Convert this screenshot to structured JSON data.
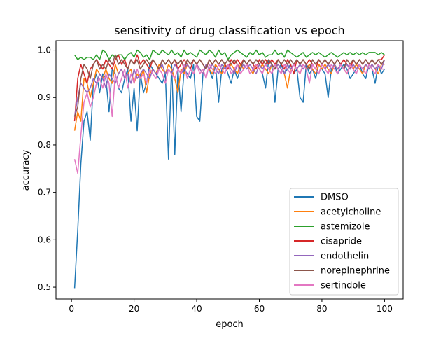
{
  "chart_data": {
    "type": "line",
    "title": "sensitivity of drug classification vs epoch",
    "xlabel": "epoch",
    "ylabel": "accuracy",
    "xlim": [
      -4.95,
      105.95
    ],
    "ylim": [
      0.475,
      1.02
    ],
    "xticks": [
      0,
      20,
      40,
      60,
      80,
      100
    ],
    "yticks": [
      0.5,
      0.6,
      0.7,
      0.8,
      0.9,
      1.0
    ],
    "xtick_labels": [
      "0",
      "20",
      "40",
      "60",
      "80",
      "100"
    ],
    "ytick_labels": [
      "0.5",
      "0.6",
      "0.7",
      "0.8",
      "0.9",
      "1.0"
    ],
    "grid": false,
    "legend_position": "lower-right",
    "x": [
      1,
      2,
      3,
      4,
      5,
      6,
      7,
      8,
      9,
      10,
      11,
      12,
      13,
      14,
      15,
      16,
      17,
      18,
      19,
      20,
      21,
      22,
      23,
      24,
      25,
      26,
      27,
      28,
      29,
      30,
      31,
      32,
      33,
      34,
      35,
      36,
      37,
      38,
      39,
      40,
      41,
      42,
      43,
      44,
      45,
      46,
      47,
      48,
      49,
      50,
      51,
      52,
      53,
      54,
      55,
      56,
      57,
      58,
      59,
      60,
      61,
      62,
      63,
      64,
      65,
      66,
      67,
      68,
      69,
      70,
      71,
      72,
      73,
      74,
      75,
      76,
      77,
      78,
      79,
      80,
      81,
      82,
      83,
      84,
      85,
      86,
      87,
      88,
      89,
      90,
      91,
      92,
      93,
      94,
      95,
      96,
      97,
      98,
      99,
      100
    ],
    "series": [
      {
        "name": "DMSO",
        "color": "#1f77b4",
        "values": [
          0.498,
          0.62,
          0.76,
          0.85,
          0.87,
          0.81,
          0.93,
          0.95,
          0.91,
          0.95,
          0.94,
          0.87,
          0.96,
          0.95,
          0.92,
          0.91,
          0.94,
          0.96,
          0.85,
          0.92,
          0.83,
          0.95,
          0.91,
          0.93,
          0.97,
          0.96,
          0.95,
          0.94,
          0.93,
          0.95,
          0.77,
          0.97,
          0.78,
          0.96,
          0.87,
          0.96,
          0.95,
          0.94,
          0.97,
          0.86,
          0.85,
          0.95,
          0.97,
          0.96,
          0.94,
          0.97,
          0.89,
          0.96,
          0.97,
          0.95,
          0.93,
          0.96,
          0.94,
          0.96,
          0.98,
          0.97,
          0.96,
          0.95,
          0.97,
          0.96,
          0.95,
          0.92,
          0.98,
          0.97,
          0.89,
          0.96,
          0.97,
          0.95,
          0.96,
          0.97,
          0.95,
          0.96,
          0.9,
          0.89,
          0.97,
          0.95,
          0.96,
          0.94,
          0.97,
          0.96,
          0.95,
          0.9,
          0.96,
          0.97,
          0.95,
          0.96,
          0.97,
          0.96,
          0.94,
          0.95,
          0.96,
          0.97,
          0.95,
          0.94,
          0.97,
          0.96,
          0.93,
          0.97,
          0.95,
          0.96
        ]
      },
      {
        "name": "acetylcholine",
        "color": "#ff7f0e",
        "values": [
          0.83,
          0.87,
          0.85,
          0.94,
          0.93,
          0.9,
          0.93,
          0.96,
          0.95,
          0.94,
          0.96,
          0.94,
          0.93,
          0.97,
          0.95,
          0.96,
          0.94,
          0.95,
          0.96,
          0.93,
          0.95,
          0.94,
          0.96,
          0.91,
          0.95,
          0.96,
          0.95,
          0.97,
          0.96,
          0.95,
          0.97,
          0.96,
          0.94,
          0.91,
          0.96,
          0.95,
          0.97,
          0.96,
          0.95,
          0.97,
          0.96,
          0.95,
          0.97,
          0.96,
          0.95,
          0.97,
          0.96,
          0.95,
          0.97,
          0.96,
          0.97,
          0.96,
          0.95,
          0.97,
          0.96,
          0.97,
          0.96,
          0.95,
          0.97,
          0.96,
          0.97,
          0.96,
          0.95,
          0.97,
          0.96,
          0.97,
          0.96,
          0.95,
          0.92,
          0.96,
          0.97,
          0.96,
          0.95,
          0.97,
          0.96,
          0.97,
          0.96,
          0.95,
          0.97,
          0.96,
          0.97,
          0.96,
          0.95,
          0.97,
          0.96,
          0.97,
          0.96,
          0.95,
          0.97,
          0.96,
          0.97,
          0.96,
          0.95,
          0.97,
          0.96,
          0.97,
          0.96,
          0.95,
          0.97,
          0.97
        ]
      },
      {
        "name": "astemizole",
        "color": "#2ca02c",
        "values": [
          0.99,
          0.98,
          0.985,
          0.98,
          0.985,
          0.985,
          0.98,
          0.99,
          0.98,
          1.0,
          0.995,
          0.98,
          0.99,
          0.985,
          0.99,
          0.99,
          0.98,
          0.99,
          0.995,
          0.985,
          1.0,
          0.995,
          0.985,
          0.99,
          0.98,
          1.0,
          0.995,
          0.99,
          1.0,
          0.995,
          0.99,
          1.0,
          0.99,
          0.995,
          0.985,
          1.0,
          0.99,
          0.995,
          0.99,
          0.985,
          1.0,
          0.995,
          0.99,
          1.0,
          0.995,
          0.985,
          1.0,
          0.99,
          0.995,
          0.98,
          0.99,
          0.995,
          1.0,
          0.995,
          0.99,
          0.985,
          0.995,
          0.99,
          1.0,
          0.99,
          0.995,
          0.985,
          0.99,
          0.99,
          1.0,
          0.99,
          0.995,
          0.985,
          1.0,
          0.995,
          0.99,
          0.985,
          0.99,
          0.995,
          0.985,
          0.99,
          0.995,
          0.99,
          0.995,
          0.99,
          0.985,
          0.99,
          0.995,
          0.99,
          0.985,
          0.99,
          0.995,
          0.99,
          0.995,
          0.99,
          0.995,
          0.99,
          0.995,
          0.99,
          0.995,
          0.995,
          0.995,
          0.99,
          0.995,
          0.99
        ]
      },
      {
        "name": "cisapride",
        "color": "#d62728",
        "values": [
          0.85,
          0.94,
          0.97,
          0.95,
          0.93,
          0.96,
          0.97,
          0.98,
          0.97,
          0.96,
          0.98,
          0.97,
          0.96,
          0.98,
          0.99,
          0.97,
          0.98,
          0.96,
          0.98,
          0.97,
          0.99,
          0.97,
          0.98,
          0.97,
          0.96,
          0.98,
          0.97,
          0.96,
          0.98,
          0.97,
          0.98,
          0.97,
          0.98,
          0.96,
          0.97,
          0.98,
          0.97,
          0.96,
          0.98,
          0.97,
          0.98,
          0.97,
          0.96,
          0.98,
          0.97,
          0.98,
          0.97,
          0.98,
          0.97,
          0.96,
          0.98,
          0.97,
          0.98,
          0.97,
          0.98,
          0.97,
          0.98,
          0.97,
          0.96,
          0.98,
          0.97,
          0.98,
          0.97,
          0.98,
          0.97,
          0.98,
          0.97,
          0.96,
          0.98,
          0.97,
          0.95,
          0.98,
          0.97,
          0.98,
          0.97,
          0.98,
          0.97,
          0.96,
          0.98,
          0.97,
          0.98,
          0.97,
          0.98,
          0.97,
          0.98,
          0.97,
          0.98,
          0.97,
          0.96,
          0.98,
          0.97,
          0.98,
          0.97,
          0.98,
          0.97,
          0.98,
          0.97,
          0.98,
          0.98,
          0.99
        ]
      },
      {
        "name": "endothelin",
        "color": "#9467bd",
        "values": [
          0.86,
          0.9,
          0.93,
          0.92,
          0.91,
          0.92,
          0.94,
          0.93,
          0.95,
          0.94,
          0.92,
          0.95,
          0.94,
          0.93,
          0.95,
          0.96,
          0.94,
          0.95,
          0.93,
          0.96,
          0.94,
          0.95,
          0.96,
          0.95,
          0.94,
          0.96,
          0.95,
          0.96,
          0.97,
          0.95,
          0.96,
          0.95,
          0.97,
          0.96,
          0.95,
          0.96,
          0.97,
          0.96,
          0.95,
          0.97,
          0.96,
          0.95,
          0.97,
          0.96,
          0.97,
          0.96,
          0.95,
          0.97,
          0.96,
          0.97,
          0.96,
          0.95,
          0.97,
          0.96,
          0.97,
          0.96,
          0.97,
          0.96,
          0.95,
          0.97,
          0.96,
          0.97,
          0.96,
          0.97,
          0.96,
          0.97,
          0.96,
          0.95,
          0.97,
          0.96,
          0.97,
          0.96,
          0.97,
          0.96,
          0.97,
          0.96,
          0.97,
          0.96,
          0.95,
          0.97,
          0.96,
          0.97,
          0.96,
          0.97,
          0.96,
          0.97,
          0.96,
          0.97,
          0.96,
          0.97,
          0.96,
          0.97,
          0.96,
          0.97,
          0.96,
          0.97,
          0.96,
          0.97,
          0.96,
          0.98
        ]
      },
      {
        "name": "norepinephrine",
        "color": "#8c564b",
        "values": [
          0.86,
          0.88,
          0.94,
          0.97,
          0.96,
          0.94,
          0.97,
          0.98,
          0.96,
          0.97,
          0.96,
          0.98,
          0.97,
          0.99,
          0.97,
          0.98,
          0.97,
          0.96,
          0.98,
          0.97,
          0.98,
          0.96,
          0.97,
          0.98,
          0.97,
          0.98,
          0.97,
          0.96,
          0.98,
          0.97,
          0.98,
          0.97,
          0.98,
          0.97,
          0.98,
          0.96,
          0.98,
          0.97,
          0.98,
          0.97,
          0.98,
          0.97,
          0.96,
          0.98,
          0.97,
          0.98,
          0.97,
          0.98,
          0.97,
          0.98,
          0.97,
          0.98,
          0.97,
          0.96,
          0.98,
          0.97,
          0.98,
          0.97,
          0.98,
          0.97,
          0.98,
          0.97,
          0.98,
          0.97,
          0.96,
          0.98,
          0.97,
          0.98,
          0.97,
          0.98,
          0.97,
          0.98,
          0.97,
          0.98,
          0.97,
          0.96,
          0.98,
          0.97,
          0.98,
          0.97,
          0.98,
          0.97,
          0.98,
          0.97,
          0.98,
          0.97,
          0.96,
          0.98,
          0.97,
          0.98,
          0.97,
          0.98,
          0.97,
          0.98,
          0.97,
          0.98,
          0.97,
          0.98,
          0.97,
          0.98
        ]
      },
      {
        "name": "sertindole",
        "color": "#e377c2",
        "values": [
          0.77,
          0.74,
          0.82,
          0.89,
          0.91,
          0.88,
          0.9,
          0.93,
          0.94,
          0.92,
          0.95,
          0.93,
          0.86,
          0.95,
          0.92,
          0.94,
          0.96,
          0.92,
          0.95,
          0.93,
          0.96,
          0.94,
          0.95,
          0.93,
          0.96,
          0.95,
          0.94,
          0.96,
          0.95,
          0.93,
          0.96,
          0.95,
          0.94,
          0.96,
          0.95,
          0.97,
          0.94,
          0.96,
          0.95,
          0.97,
          0.95,
          0.96,
          0.94,
          0.97,
          0.96,
          0.95,
          0.97,
          0.96,
          0.95,
          0.97,
          0.95,
          0.96,
          0.97,
          0.95,
          0.96,
          0.97,
          0.95,
          0.96,
          0.97,
          0.96,
          0.95,
          0.97,
          0.96,
          0.95,
          0.97,
          0.96,
          0.95,
          0.97,
          0.96,
          0.95,
          0.97,
          0.96,
          0.95,
          0.97,
          0.96,
          0.93,
          0.97,
          0.96,
          0.95,
          0.97,
          0.96,
          0.95,
          0.97,
          0.96,
          0.95,
          0.97,
          0.96,
          0.95,
          0.97,
          0.96,
          0.95,
          0.97,
          0.96,
          0.95,
          0.97,
          0.96,
          0.95,
          0.97,
          0.96,
          0.96
        ]
      }
    ]
  }
}
